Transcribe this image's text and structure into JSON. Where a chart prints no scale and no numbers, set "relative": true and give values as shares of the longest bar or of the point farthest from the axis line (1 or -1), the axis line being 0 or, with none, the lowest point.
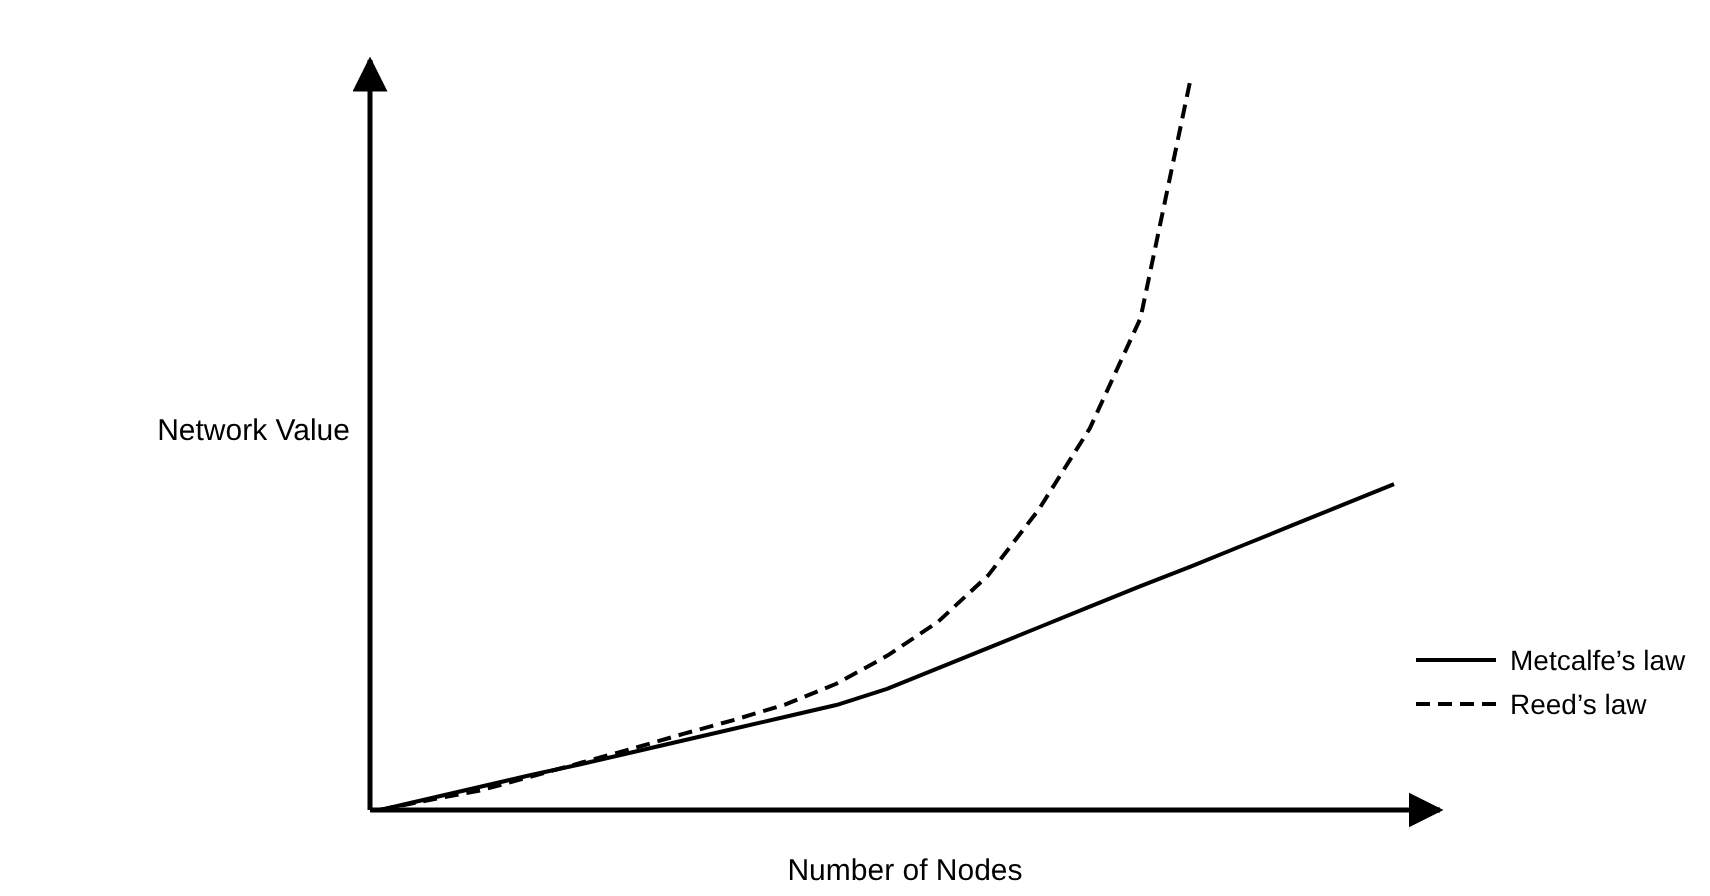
{
  "chart_data": {
    "type": "line",
    "relative": true,
    "xlabel": "Number of Nodes",
    "ylabel": "Network Value",
    "legend": "right",
    "marker": "none",
    "categories": [
      null,
      null,
      null,
      null,
      null,
      null,
      null,
      null,
      null,
      null,
      null,
      null,
      null,
      null,
      null,
      null,
      null,
      null,
      null,
      null,
      null
    ],
    "series": [
      {
        "name": "Metcalfe’s law",
        "color": "#000000",
        "line_style": "solid",
        "values": [
          0,
          0.016,
          0.032,
          0.048,
          0.063,
          0.079,
          0.095,
          0.111,
          0.127,
          0.143,
          0.165,
          0.193,
          0.221,
          0.249,
          0.277,
          0.305,
          0.332,
          0.36,
          0.388,
          0.416,
          0.444
        ]
      },
      {
        "name": "Reed’s law",
        "color": "#000000",
        "line_style": "dashed",
        "values": [
          0,
          0.014,
          0.027,
          0.046,
          0.065,
          0.084,
          0.104,
          0.123,
          0.144,
          0.172,
          0.21,
          0.256,
          0.32,
          0.41,
          0.52,
          0.67,
          1,
          null,
          null,
          null,
          null
        ]
      }
    ]
  }
}
